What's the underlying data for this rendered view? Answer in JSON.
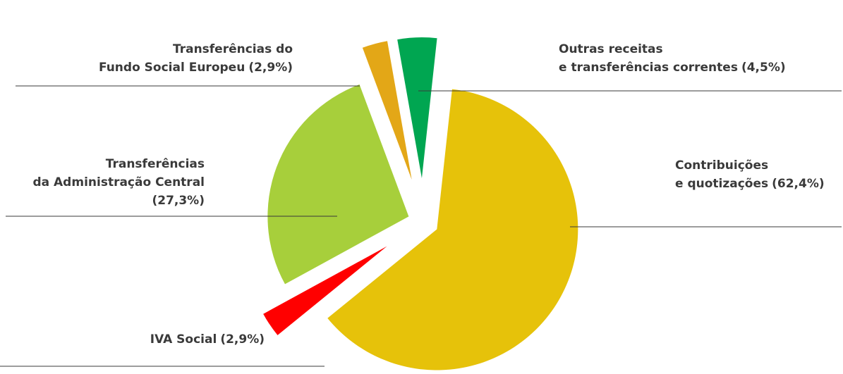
{
  "chart_data": {
    "type": "pie",
    "categories": [
      [
        "Outras receitas",
        "e transferências correntes"
      ],
      [
        "Contribuições",
        "e quotizações"
      ],
      [
        "IVA Social"
      ],
      [
        "Transferências",
        "da Administração Central"
      ],
      [
        "Transferências do",
        "Fundo Social Europeu"
      ]
    ],
    "values": [
      4.5,
      62.4,
      2.9,
      27.3,
      2.9
    ],
    "value_labels": [
      "(4,5%)",
      "(62,4%)",
      "(2,9%)",
      "(27,3%)",
      "(2,9%)"
    ],
    "colors": [
      "#00a651",
      "#e6c20a",
      "#ff0000",
      "#a7cf3b",
      "#e3a717"
    ]
  }
}
